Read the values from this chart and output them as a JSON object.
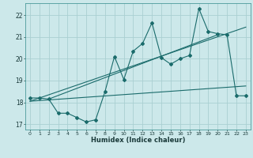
{
  "bg_color": "#cce8ea",
  "label_bar_color": "#a8d0d2",
  "grid_color": "#aacfd2",
  "line_color": "#1a6b6b",
  "xlabel": "Humidex (Indice chaleur)",
  "xlim": [
    -0.5,
    23.5
  ],
  "ylim": [
    16.75,
    22.55
  ],
  "yticks": [
    17,
    18,
    19,
    20,
    21,
    22
  ],
  "xticks": [
    0,
    1,
    2,
    3,
    4,
    5,
    6,
    7,
    8,
    9,
    10,
    11,
    12,
    13,
    14,
    15,
    16,
    17,
    18,
    19,
    20,
    21,
    22,
    23
  ],
  "main_x": [
    0,
    1,
    2,
    3,
    4,
    5,
    6,
    7,
    8,
    9,
    10,
    11,
    12,
    13,
    14,
    15,
    16,
    17,
    18,
    19,
    20,
    21,
    22,
    23
  ],
  "main_y": [
    18.2,
    18.2,
    18.15,
    17.5,
    17.5,
    17.3,
    17.1,
    17.2,
    18.5,
    20.1,
    19.05,
    20.35,
    20.7,
    21.65,
    20.05,
    19.75,
    20.0,
    20.15,
    22.3,
    21.25,
    21.15,
    21.1,
    18.3,
    18.3
  ],
  "trend1_x": [
    0,
    23
  ],
  "trend1_y": [
    18.05,
    21.45
  ],
  "trend2_x": [
    0,
    23
  ],
  "trend2_y": [
    18.05,
    18.75
  ],
  "trend3_x": [
    2,
    20
  ],
  "trend3_y": [
    18.15,
    21.1
  ]
}
